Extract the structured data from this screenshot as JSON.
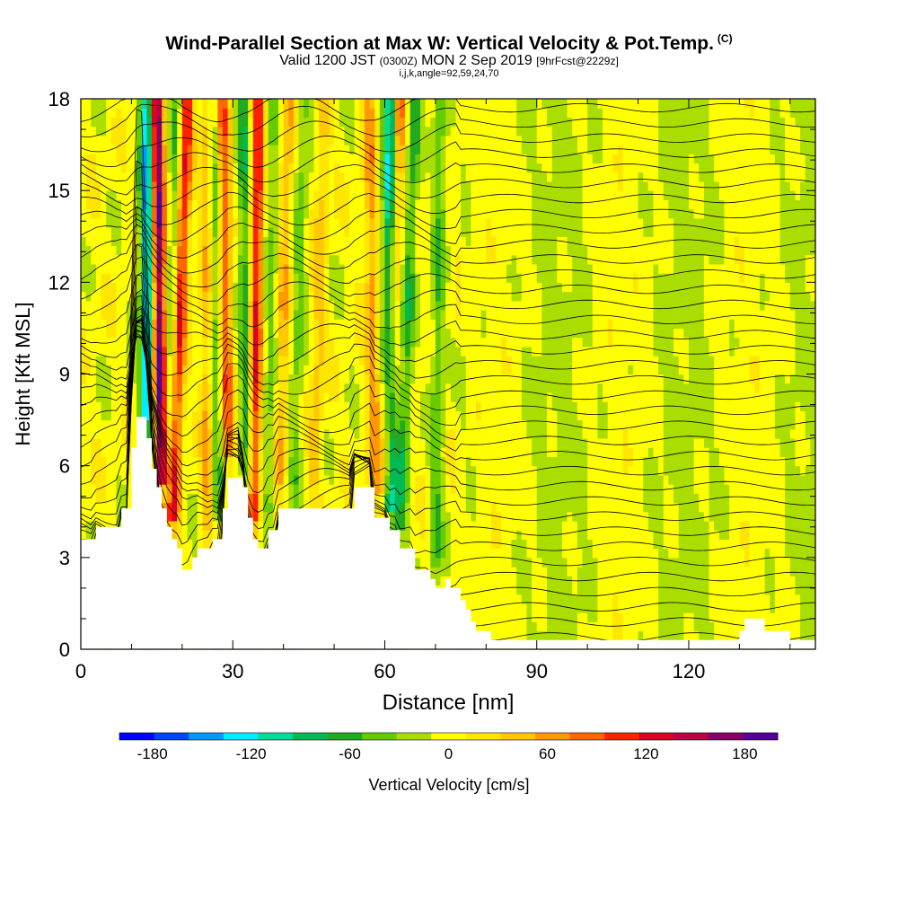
{
  "header": {
    "title": "Wind-Parallel Section at Max W: Vertical Velocity & Pot.Temp.",
    "title_tag": "(C)",
    "valid_prefix": "Valid 1200 JST",
    "valid_utc": "(0300Z)",
    "valid_date": "MON 2 Sep 2019",
    "forecast": "[9hrFcst@2229z]",
    "params": "i,j,k,angle=92,59,24,70"
  },
  "chart_data": {
    "type": "heatmap",
    "xlabel": "Distance [nm]",
    "ylabel": "Height [Kft MSL]",
    "xlim": [
      0,
      145
    ],
    "ylim": [
      0,
      18
    ],
    "x_ticks": [
      0,
      30,
      60,
      90,
      120
    ],
    "y_ticks": [
      0,
      3,
      6,
      9,
      12,
      15,
      18
    ],
    "colorbar": {
      "label": "Vertical Velocity [cm/s]",
      "ticks": [
        -180,
        -120,
        -60,
        0,
        60,
        120,
        180
      ],
      "range": [
        -200,
        200
      ],
      "colors": [
        "#0000ff",
        "#0044ff",
        "#0099ff",
        "#00eeff",
        "#00dd99",
        "#00bb55",
        "#22aa22",
        "#66cc00",
        "#aadd00",
        "#ffff00",
        "#ffe600",
        "#ffc800",
        "#ff9900",
        "#ff6600",
        "#ff2200",
        "#dd0022",
        "#bb0044",
        "#880066",
        "#550099"
      ]
    },
    "terrain": [
      [
        0,
        3.6
      ],
      [
        3,
        3.6
      ],
      [
        3,
        4.0
      ],
      [
        8,
        4.0
      ],
      [
        8,
        4.6
      ],
      [
        10,
        4.6
      ],
      [
        10,
        6.6
      ],
      [
        11,
        6.6
      ],
      [
        11,
        7.6
      ],
      [
        13,
        7.6
      ],
      [
        13,
        6.9
      ],
      [
        14,
        6.9
      ],
      [
        14,
        5.9
      ],
      [
        15,
        5.9
      ],
      [
        15,
        5.3
      ],
      [
        16,
        5.3
      ],
      [
        16,
        4.6
      ],
      [
        17,
        4.6
      ],
      [
        17,
        4.0
      ],
      [
        18,
        4.0
      ],
      [
        18,
        3.6
      ],
      [
        19,
        3.6
      ],
      [
        19,
        3.3
      ],
      [
        20,
        3.3
      ],
      [
        20,
        2.6
      ],
      [
        22,
        2.6
      ],
      [
        22,
        3.0
      ],
      [
        23,
        3.0
      ],
      [
        23,
        3.3
      ],
      [
        26,
        3.3
      ],
      [
        26,
        3.6
      ],
      [
        28,
        3.6
      ],
      [
        28,
        4.6
      ],
      [
        29,
        4.6
      ],
      [
        29,
        5.6
      ],
      [
        32,
        5.6
      ],
      [
        32,
        5.3
      ],
      [
        33,
        5.3
      ],
      [
        33,
        4.3
      ],
      [
        34,
        4.3
      ],
      [
        34,
        3.6
      ],
      [
        35,
        3.6
      ],
      [
        35,
        3.3
      ],
      [
        37,
        3.3
      ],
      [
        37,
        3.9
      ],
      [
        39,
        3.9
      ],
      [
        39,
        4.6
      ],
      [
        54,
        4.6
      ],
      [
        54,
        5.3
      ],
      [
        58,
        5.3
      ],
      [
        58,
        4.3
      ],
      [
        61,
        4.3
      ],
      [
        61,
        3.9
      ],
      [
        63,
        3.9
      ],
      [
        63,
        3.3
      ],
      [
        66,
        3.3
      ],
      [
        66,
        2.6
      ],
      [
        69,
        2.6
      ],
      [
        69,
        2.3
      ],
      [
        70,
        2.3
      ],
      [
        70,
        2.0
      ],
      [
        72,
        2.0
      ],
      [
        72,
        2.3
      ],
      [
        73,
        2.3
      ],
      [
        73,
        2.0
      ],
      [
        75,
        2.0
      ],
      [
        75,
        1.6
      ],
      [
        76,
        1.6
      ],
      [
        76,
        1.3
      ],
      [
        77,
        1.3
      ],
      [
        77,
        0.9
      ],
      [
        78,
        0.9
      ],
      [
        78,
        0.6
      ],
      [
        81,
        0.6
      ],
      [
        81,
        0.3
      ],
      [
        130,
        0.3
      ],
      [
        130,
        0.6
      ],
      [
        131,
        0.6
      ],
      [
        131,
        1.0
      ],
      [
        135,
        1.0
      ],
      [
        135,
        0.6
      ],
      [
        140,
        0.6
      ],
      [
        140,
        0.3
      ],
      [
        145,
        0.3
      ]
    ],
    "updrafts": [
      {
        "x_top": 15,
        "x_base": 16,
        "peak": 180
      },
      {
        "x_top": 21,
        "x_base": 18,
        "peak": 120
      },
      {
        "x_top": 25,
        "x_base": 25,
        "peak": 60
      },
      {
        "x_top": 28,
        "x_base": 29,
        "peak": 90
      },
      {
        "x_top": 35,
        "x_base": 34,
        "peak": 120
      },
      {
        "x_top": 41,
        "x_base": 39,
        "peak": 50
      },
      {
        "x_top": 48,
        "x_base": 46,
        "peak": 40
      },
      {
        "x_top": 57,
        "x_base": 58,
        "peak": 60
      },
      {
        "x_top": 63,
        "x_base": 60,
        "peak": 80
      }
    ],
    "downdrafts": [
      {
        "x_top": 13,
        "x_base": 13,
        "peak": -150
      },
      {
        "x_top": 19,
        "x_base": 17,
        "peak": -50
      },
      {
        "x_top": 26,
        "x_base": 27,
        "peak": -60
      },
      {
        "x_top": 32,
        "x_base": 33,
        "peak": -70
      },
      {
        "x_top": 38,
        "x_base": 37,
        "peak": -40
      },
      {
        "x_top": 44,
        "x_base": 42,
        "peak": -40
      },
      {
        "x_top": 61,
        "x_base": 61,
        "peak": -130
      },
      {
        "x_top": 66,
        "x_base": 63,
        "peak": -60
      },
      {
        "x_top": 71,
        "x_base": 70,
        "peak": -50
      }
    ],
    "theta_contours": 36
  }
}
